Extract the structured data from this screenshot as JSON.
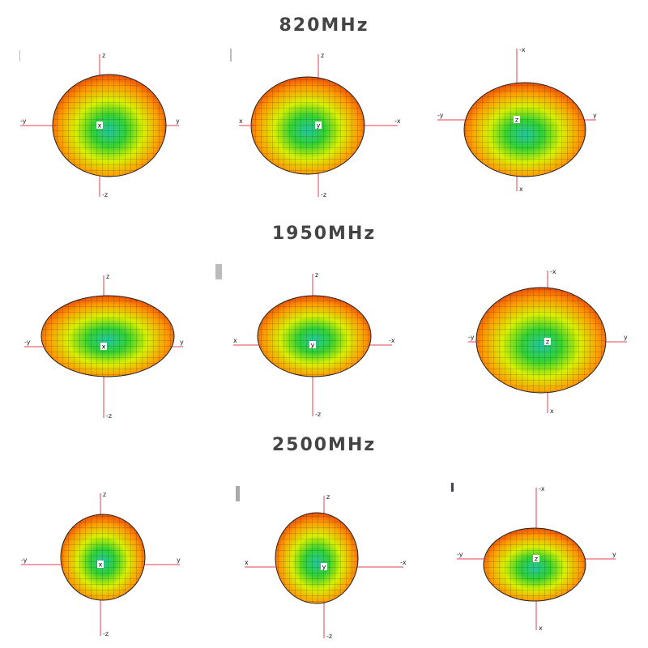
{
  "sections": [
    {
      "title": "820MHz",
      "panels": [
        {
          "top": "z",
          "bottom": "-z",
          "left": "-y",
          "right": "y",
          "center": "x"
        },
        {
          "top": "z",
          "bottom": "-z",
          "left": "x",
          "right": "-x",
          "center": "y"
        },
        {
          "top": "-x",
          "bottom": "x",
          "left": "-y",
          "right": "y",
          "center": "z"
        }
      ]
    },
    {
      "title": "1950MHz",
      "panels": [
        {
          "top": "z",
          "bottom": "-z",
          "left": "-y",
          "right": "y",
          "center": "x"
        },
        {
          "top": "z",
          "bottom": "-z",
          "left": "x",
          "right": "-x",
          "center": "y"
        },
        {
          "top": "-x",
          "bottom": "x",
          "left": "-y",
          "right": "y",
          "center": "z"
        }
      ]
    },
    {
      "title": "2500MHz",
      "panels": [
        {
          "top": "z",
          "bottom": "-z",
          "left": "-y",
          "right": "y",
          "center": "x"
        },
        {
          "top": "z",
          "bottom": "-z",
          "left": "x",
          "right": "-x",
          "center": "y"
        },
        {
          "top": "-x",
          "bottom": "x",
          "left": "-y",
          "right": "y",
          "center": "z"
        }
      ]
    }
  ]
}
